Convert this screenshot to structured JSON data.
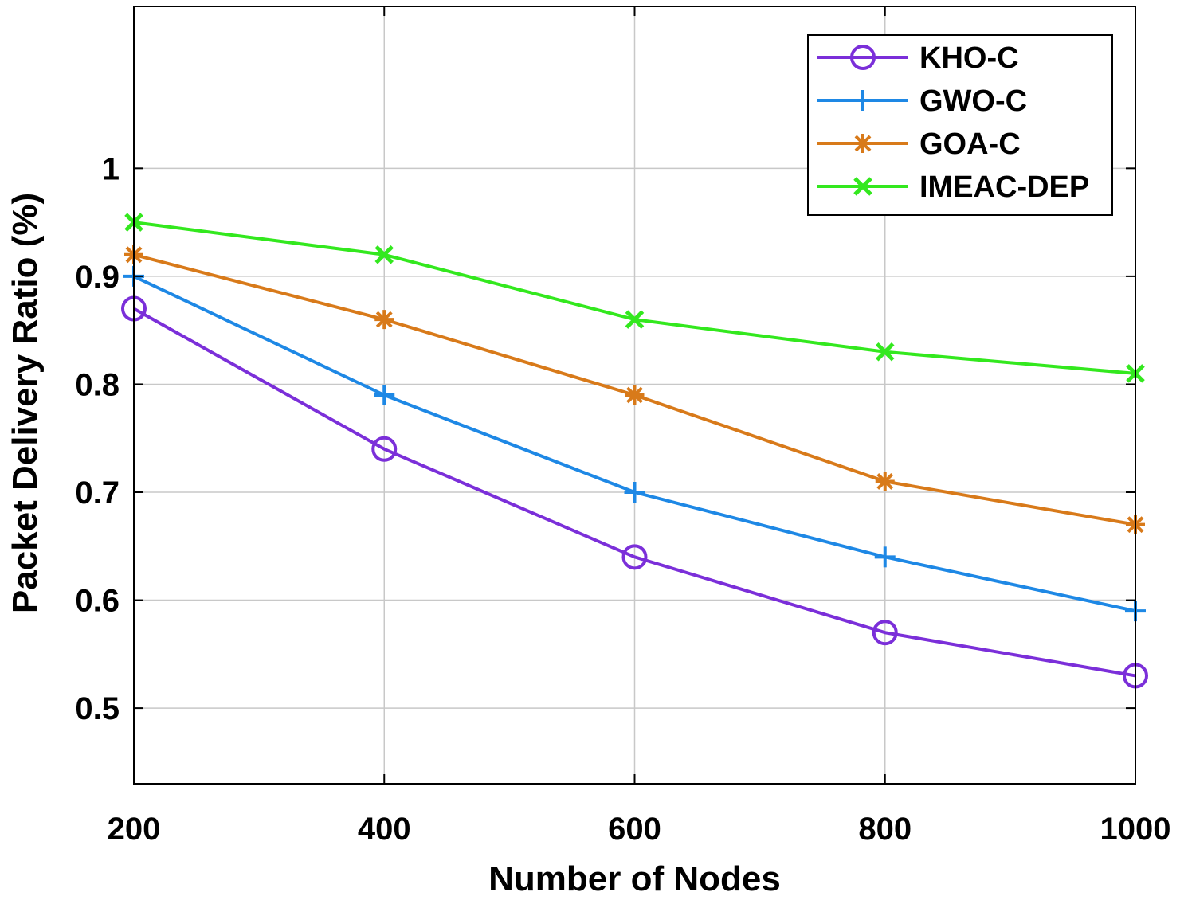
{
  "chart_data": {
    "type": "line",
    "title": "",
    "xlabel": "Number of Nodes",
    "ylabel": "Packet Delivery Ratio (%)",
    "x": [
      200,
      400,
      600,
      800,
      1000
    ],
    "x_ticks": [
      "200",
      "400",
      "600",
      "800",
      "1000"
    ],
    "y_ticks": [
      "0.5",
      "0.6",
      "0.7",
      "0.8",
      "0.9",
      "1"
    ],
    "y_tick_values": [
      0.5,
      0.6,
      0.7,
      0.8,
      0.9,
      1.0
    ],
    "xlim": [
      200,
      1000
    ],
    "ylim": [
      0.43,
      1.15
    ],
    "grid": true,
    "legend_position": "top-right",
    "series": [
      {
        "name": "KHO-C",
        "marker": "circle",
        "color": "#7b2fd9",
        "values": [
          0.87,
          0.74,
          0.64,
          0.57,
          0.53
        ]
      },
      {
        "name": "GWO-C",
        "marker": "plus",
        "color": "#1e88e5",
        "values": [
          0.9,
          0.79,
          0.7,
          0.64,
          0.59
        ]
      },
      {
        "name": "GOA-C",
        "marker": "asterisk",
        "color": "#d87a1a",
        "values": [
          0.92,
          0.86,
          0.79,
          0.71,
          0.67
        ]
      },
      {
        "name": "IMEAC-DEP",
        "marker": "x",
        "color": "#33e81e",
        "values": [
          0.95,
          0.92,
          0.86,
          0.83,
          0.81
        ]
      }
    ]
  }
}
